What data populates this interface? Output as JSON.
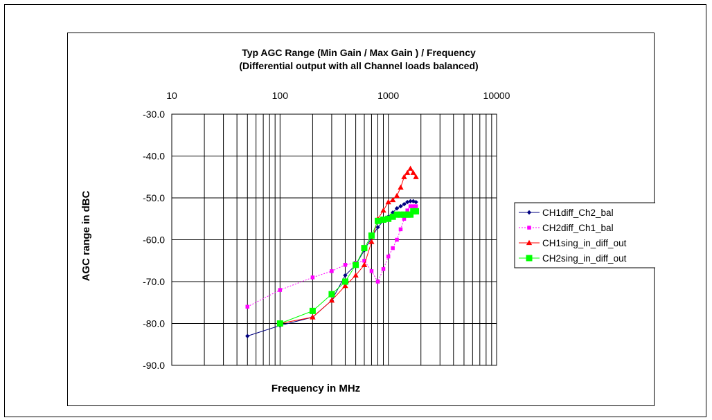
{
  "chart_data": {
    "type": "line",
    "title": "Typ AGC Range (Min Gain / Max Gain ) / Frequency",
    "subtitle": "(Differential output with all Channel loads balanced)",
    "xlabel": "Frequency in MHz",
    "ylabel": "AGC range in dBC",
    "x_scale": "log",
    "xlim": [
      10,
      10000
    ],
    "ylim": [
      -90,
      -30
    ],
    "x_ticks": [
      "10",
      "100",
      "1000",
      "10000"
    ],
    "y_ticks": [
      "-30.0",
      "-40.0",
      "-50.0",
      "-60.0",
      "-70.0",
      "-80.0",
      "-90.0"
    ],
    "grid": true,
    "legend_position": "right",
    "series": [
      {
        "name": "CH1diff_Ch2_bal",
        "color": "#000080",
        "marker": "diamond",
        "line_style": "solid",
        "points": [
          [
            50,
            -83
          ],
          [
            100,
            -80.5
          ],
          [
            200,
            -78.5
          ],
          [
            300,
            -74.5
          ],
          [
            400,
            -68.5
          ],
          [
            500,
            -66
          ],
          [
            600,
            -62.5
          ],
          [
            700,
            -59.5
          ],
          [
            800,
            -57
          ],
          [
            900,
            -55.5
          ],
          [
            1000,
            -54.5
          ],
          [
            1100,
            -53.5
          ],
          [
            1200,
            -52.5
          ],
          [
            1300,
            -52
          ],
          [
            1400,
            -51.5
          ],
          [
            1500,
            -51
          ],
          [
            1600,
            -50.8
          ],
          [
            1700,
            -50.8
          ],
          [
            1800,
            -51
          ]
        ]
      },
      {
        "name": "CH2diff_Ch1_bal",
        "color": "#FF00FF",
        "marker": "square",
        "line_style": "dotted",
        "points": [
          [
            50,
            -76
          ],
          [
            100,
            -72
          ],
          [
            200,
            -69
          ],
          [
            300,
            -67.5
          ],
          [
            400,
            -66
          ],
          [
            500,
            -65.5
          ],
          [
            600,
            -65
          ],
          [
            700,
            -67.5
          ],
          [
            800,
            -70
          ],
          [
            900,
            -67
          ],
          [
            1000,
            -64
          ],
          [
            1100,
            -62
          ],
          [
            1200,
            -60
          ],
          [
            1300,
            -57.5
          ],
          [
            1400,
            -55
          ],
          [
            1500,
            -53
          ],
          [
            1600,
            -52
          ],
          [
            1700,
            -52
          ],
          [
            1800,
            -52
          ]
        ]
      },
      {
        "name": "CH1sing_in_diff_out",
        "color": "#FF0000",
        "marker": "triangle",
        "line_style": "solid",
        "points": [
          [
            100,
            -80
          ],
          [
            200,
            -78.5
          ],
          [
            300,
            -74.5
          ],
          [
            400,
            -71
          ],
          [
            500,
            -68.5
          ],
          [
            600,
            -66
          ],
          [
            700,
            -60.5
          ],
          [
            800,
            -55
          ],
          [
            900,
            -53
          ],
          [
            1000,
            -51
          ],
          [
            1100,
            -50.5
          ],
          [
            1200,
            -49.5
          ],
          [
            1300,
            -47.5
          ],
          [
            1400,
            -45
          ],
          [
            1500,
            -44
          ],
          [
            1600,
            -43
          ],
          [
            1700,
            -44
          ],
          [
            1800,
            -45
          ]
        ]
      },
      {
        "name": "CH2sing_in_diff_out",
        "color": "#00FF00",
        "marker": "square",
        "line_style": "solid",
        "points": [
          [
            100,
            -80
          ],
          [
            200,
            -77
          ],
          [
            300,
            -73
          ],
          [
            400,
            -70
          ],
          [
            500,
            -66
          ],
          [
            600,
            -62
          ],
          [
            700,
            -59
          ],
          [
            800,
            -55.5
          ],
          [
            900,
            -55.2
          ],
          [
            1000,
            -55
          ],
          [
            1100,
            -54.5
          ],
          [
            1200,
            -54
          ],
          [
            1300,
            -54
          ],
          [
            1400,
            -54
          ],
          [
            1500,
            -54
          ],
          [
            1600,
            -54
          ],
          [
            1700,
            -53.2
          ],
          [
            1800,
            -53.2
          ]
        ]
      }
    ]
  }
}
